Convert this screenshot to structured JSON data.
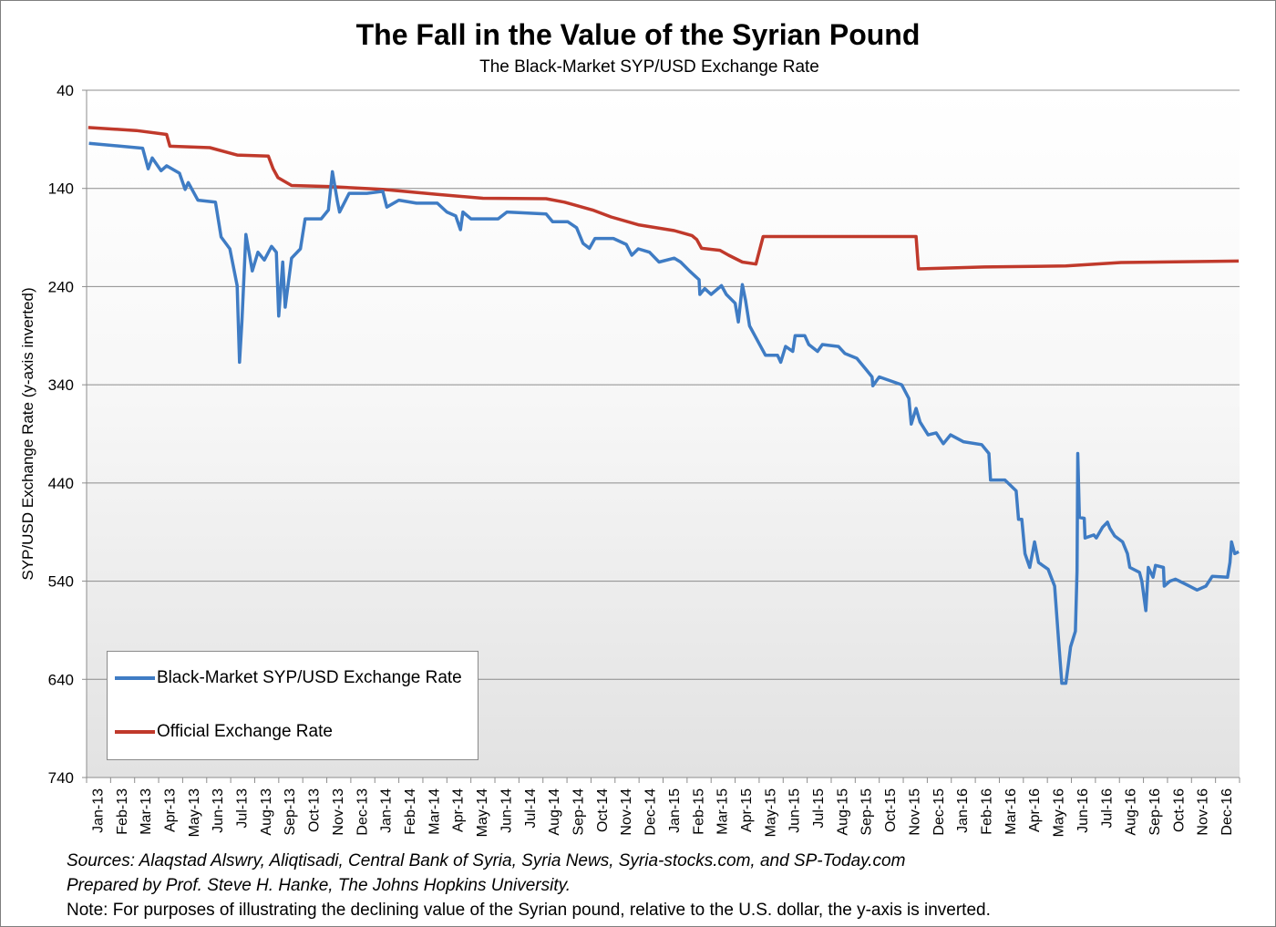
{
  "chart_data": {
    "type": "line",
    "title": "The Fall in the Value of the Syrian Pound",
    "subtitle": "The Black-Market SYP/USD Exchange Rate",
    "ylabel": "SYP/USD Exchange Rate (y-axis inverted)",
    "xlabel": "",
    "ylim": [
      40,
      740
    ],
    "y_inverted": true,
    "yticks": [
      40,
      140,
      240,
      340,
      440,
      540,
      640,
      740
    ],
    "xlim": [
      "2013-01-01",
      "2016-12-31"
    ],
    "xtick_labels": [
      "Jan-13",
      "Feb-13",
      "Mar-13",
      "Apr-13",
      "May-13",
      "Jun-13",
      "Jul-13",
      "Aug-13",
      "Sep-13",
      "Oct-13",
      "Nov-13",
      "Dec-13",
      "Jan-14",
      "Feb-14",
      "Mar-14",
      "Apr-14",
      "May-14",
      "Jun-14",
      "Jul-14",
      "Aug-14",
      "Sep-14",
      "Oct-14",
      "Nov-14",
      "Dec-14",
      "Jan-15",
      "Feb-15",
      "Mar-15",
      "Apr-15",
      "May-15",
      "Jun-15",
      "Jul-15",
      "Aug-15",
      "Sep-15",
      "Oct-15",
      "Nov-15",
      "Dec-15",
      "Jan-16",
      "Feb-16",
      "Mar-16",
      "Apr-16",
      "May-16",
      "Jun-16",
      "Jul-16",
      "Aug-16",
      "Sep-16",
      "Oct-16",
      "Nov-16",
      "Dec-16"
    ],
    "grid": "horizontal",
    "legend_position": "bottom-left",
    "series": [
      {
        "name": "Black-Market SYP/USD Exchange Rate",
        "color": "#3f7cc4",
        "points": [
          [
            "2013-01-04",
            94
          ],
          [
            "2013-03-11",
            99
          ],
          [
            "2013-03-18",
            120
          ],
          [
            "2013-03-23",
            109
          ],
          [
            "2013-04-04",
            122
          ],
          [
            "2013-04-11",
            117
          ],
          [
            "2013-04-27",
            124.5
          ],
          [
            "2013-05-04",
            141
          ],
          [
            "2013-05-08",
            134
          ],
          [
            "2013-05-20",
            152
          ],
          [
            "2013-06-12",
            154
          ],
          [
            "2013-06-19",
            189.5
          ],
          [
            "2013-06-30",
            201.5
          ],
          [
            "2013-07-09",
            239
          ],
          [
            "2013-07-12",
            317
          ],
          [
            "2013-07-15",
            276
          ],
          [
            "2013-07-20",
            187
          ],
          [
            "2013-07-28",
            224
          ],
          [
            "2013-08-05",
            205
          ],
          [
            "2013-08-13",
            213
          ],
          [
            "2013-08-22",
            199
          ],
          [
            "2013-08-28",
            205
          ],
          [
            "2013-09-01",
            270
          ],
          [
            "2013-09-06",
            215
          ],
          [
            "2013-09-09",
            261
          ],
          [
            "2013-09-17",
            211
          ],
          [
            "2013-09-28",
            201.5
          ],
          [
            "2013-10-04",
            171
          ],
          [
            "2013-10-24",
            171
          ],
          [
            "2013-11-03",
            162
          ],
          [
            "2013-11-08",
            123
          ],
          [
            "2013-11-14",
            152
          ],
          [
            "2013-11-17",
            164
          ],
          [
            "2013-11-29",
            145
          ],
          [
            "2013-12-21",
            145
          ],
          [
            "2014-01-11",
            143
          ],
          [
            "2014-01-16",
            159
          ],
          [
            "2014-02-01",
            152
          ],
          [
            "2014-02-23",
            155
          ],
          [
            "2014-03-19",
            155
          ],
          [
            "2014-04-01",
            164
          ],
          [
            "2014-04-12",
            168
          ],
          [
            "2014-04-18",
            182
          ],
          [
            "2014-04-21",
            164
          ],
          [
            "2014-05-01",
            171
          ],
          [
            "2014-06-05",
            171
          ],
          [
            "2014-06-16",
            164
          ],
          [
            "2014-08-05",
            166
          ],
          [
            "2014-08-13",
            174
          ],
          [
            "2014-09-02",
            174
          ],
          [
            "2014-09-13",
            180
          ],
          [
            "2014-09-21",
            196
          ],
          [
            "2014-09-29",
            201
          ],
          [
            "2014-10-06",
            191
          ],
          [
            "2014-10-29",
            191
          ],
          [
            "2014-11-15",
            197
          ],
          [
            "2014-11-22",
            208
          ],
          [
            "2014-11-30",
            201.5
          ],
          [
            "2014-12-14",
            205
          ],
          [
            "2014-12-26",
            215
          ],
          [
            "2015-01-15",
            211
          ],
          [
            "2015-01-23",
            215
          ],
          [
            "2015-02-04",
            224
          ],
          [
            "2015-02-16",
            233
          ],
          [
            "2015-02-17",
            248
          ],
          [
            "2015-02-23",
            242
          ],
          [
            "2015-03-01",
            248
          ],
          [
            "2015-03-14",
            239
          ],
          [
            "2015-03-20",
            248
          ],
          [
            "2015-04-01",
            257
          ],
          [
            "2015-04-05",
            276
          ],
          [
            "2015-04-10",
            238
          ],
          [
            "2015-04-14",
            254
          ],
          [
            "2015-04-19",
            280
          ],
          [
            "2015-05-01",
            298
          ],
          [
            "2015-05-09",
            310
          ],
          [
            "2015-05-24",
            310
          ],
          [
            "2015-05-28",
            317
          ],
          [
            "2015-06-04",
            301
          ],
          [
            "2015-06-13",
            306
          ],
          [
            "2015-06-16",
            290
          ],
          [
            "2015-06-28",
            290
          ],
          [
            "2015-07-03",
            299
          ],
          [
            "2015-07-14",
            306
          ],
          [
            "2015-07-20",
            299
          ],
          [
            "2015-08-10",
            301
          ],
          [
            "2015-08-18",
            308
          ],
          [
            "2015-09-03",
            313
          ],
          [
            "2015-09-14",
            324
          ],
          [
            "2015-09-22",
            332
          ],
          [
            "2015-09-23",
            341
          ],
          [
            "2015-10-01",
            332
          ],
          [
            "2015-10-29",
            340
          ],
          [
            "2015-11-08",
            354
          ],
          [
            "2015-11-11",
            380
          ],
          [
            "2015-11-17",
            364
          ],
          [
            "2015-11-22",
            378
          ],
          [
            "2015-12-02",
            391
          ],
          [
            "2015-12-12",
            389
          ],
          [
            "2015-12-21",
            400
          ],
          [
            "2015-12-30",
            391
          ],
          [
            "2016-01-16",
            398
          ],
          [
            "2016-02-09",
            401
          ],
          [
            "2016-02-18",
            410
          ],
          [
            "2016-02-20",
            437
          ],
          [
            "2016-03-08",
            437
          ],
          [
            "2016-03-22",
            448
          ],
          [
            "2016-03-25",
            477
          ],
          [
            "2016-03-29",
            477
          ],
          [
            "2016-04-03",
            512
          ],
          [
            "2016-04-09",
            526
          ],
          [
            "2016-04-15",
            500
          ],
          [
            "2016-04-20",
            521
          ],
          [
            "2016-05-02",
            528
          ],
          [
            "2016-05-10",
            545
          ],
          [
            "2016-05-15",
            601
          ],
          [
            "2016-05-19",
            644
          ],
          [
            "2016-05-24",
            644
          ],
          [
            "2016-05-27",
            626
          ],
          [
            "2016-05-30",
            607
          ],
          [
            "2016-06-06",
            591
          ],
          [
            "2016-06-08",
            530
          ],
          [
            "2016-06-09",
            410
          ],
          [
            "2016-06-11",
            475
          ],
          [
            "2016-06-17",
            476
          ],
          [
            "2016-06-18",
            496
          ],
          [
            "2016-06-29",
            493
          ],
          [
            "2016-07-02",
            496
          ],
          [
            "2016-07-10",
            485
          ],
          [
            "2016-07-16",
            480
          ],
          [
            "2016-07-19",
            486
          ],
          [
            "2016-07-25",
            494
          ],
          [
            "2016-08-05",
            500
          ],
          [
            "2016-08-11",
            512
          ],
          [
            "2016-08-14",
            526
          ],
          [
            "2016-08-26",
            531
          ],
          [
            "2016-08-29",
            540
          ],
          [
            "2016-09-04",
            570
          ],
          [
            "2016-09-07",
            526
          ],
          [
            "2016-09-13",
            536
          ],
          [
            "2016-09-16",
            524
          ],
          [
            "2016-09-26",
            526
          ],
          [
            "2016-09-27",
            545
          ],
          [
            "2016-10-04",
            540
          ],
          [
            "2016-10-11",
            538
          ],
          [
            "2016-10-26",
            544
          ],
          [
            "2016-11-08",
            549
          ],
          [
            "2016-11-19",
            545
          ],
          [
            "2016-11-27",
            535
          ],
          [
            "2016-12-16",
            536
          ],
          [
            "2016-12-19",
            521
          ],
          [
            "2016-12-21",
            500
          ],
          [
            "2016-12-25",
            512
          ],
          [
            "2016-12-30",
            510
          ]
        ]
      },
      {
        "name": "Official Exchange Rate",
        "color": "#c0392b",
        "points": [
          [
            "2013-01-03",
            78
          ],
          [
            "2013-03-03",
            81
          ],
          [
            "2013-04-11",
            85
          ],
          [
            "2013-04-15",
            97
          ],
          [
            "2013-06-05",
            98.5
          ],
          [
            "2013-07-09",
            106
          ],
          [
            "2013-08-18",
            107
          ],
          [
            "2013-08-24",
            120
          ],
          [
            "2013-08-30",
            129
          ],
          [
            "2013-09-17",
            137
          ],
          [
            "2013-11-03",
            138
          ],
          [
            "2014-01-11",
            141
          ],
          [
            "2014-03-19",
            146
          ],
          [
            "2014-05-16",
            150
          ],
          [
            "2014-08-05",
            150.5
          ],
          [
            "2014-08-28",
            154
          ],
          [
            "2014-10-03",
            162
          ],
          [
            "2014-10-26",
            169
          ],
          [
            "2014-11-30",
            177
          ],
          [
            "2015-01-15",
            183
          ],
          [
            "2015-02-07",
            188
          ],
          [
            "2015-02-13",
            192
          ],
          [
            "2015-02-19",
            201
          ],
          [
            "2015-03-12",
            203
          ],
          [
            "2015-03-23",
            208
          ],
          [
            "2015-04-10",
            215
          ],
          [
            "2015-04-27",
            217
          ],
          [
            "2015-05-06",
            189
          ],
          [
            "2015-11-17",
            189
          ],
          [
            "2015-11-20",
            222
          ],
          [
            "2016-02-12",
            220
          ],
          [
            "2016-05-24",
            219
          ],
          [
            "2016-08-03",
            215.5
          ],
          [
            "2016-12-30",
            214
          ]
        ]
      }
    ]
  },
  "footer": {
    "sources": "Sources: Alaqstad Alswry, Aliqtisadi, Central Bank of Syria, Syria News, Syria-stocks.com, and SP-Today.com",
    "prepared_by": "Prepared by Prof. Steve H. Hanke, The Johns Hopkins University.",
    "note": "Note: For purposes of illustrating the declining value of the  Syrian pound, relative to the U.S. dollar, the y-axis is inverted."
  }
}
